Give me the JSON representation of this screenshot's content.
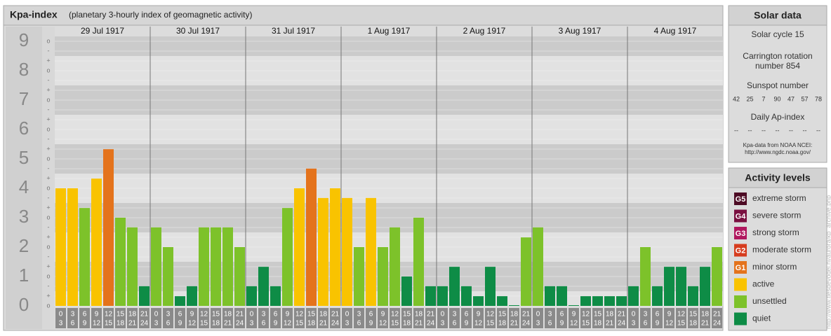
{
  "chart_data": {
    "type": "bar",
    "title": "Kpa-index",
    "subtitle": "(planetary 3-hourly index of geomagnetic activity)",
    "ylim": [
      0,
      9
    ],
    "yticks": [
      0,
      1,
      2,
      3,
      4,
      5,
      6,
      7,
      8,
      9
    ],
    "sublabels": [
      "o",
      "+",
      "-"
    ],
    "intervals": [
      [
        0,
        3
      ],
      [
        3,
        6
      ],
      [
        6,
        9
      ],
      [
        9,
        12
      ],
      [
        12,
        15
      ],
      [
        15,
        18
      ],
      [
        18,
        21
      ],
      [
        21,
        24
      ]
    ],
    "days": [
      {
        "label": "29 Jul 1917",
        "values": [
          4,
          4,
          3.33,
          4.33,
          5.33,
          3,
          2.67,
          0.67
        ],
        "colors": [
          "#f9c300",
          "#f9c300",
          "#7dc22a",
          "#f9c300",
          "#e4731c",
          "#7dc22a",
          "#7dc22a",
          "#0e8c46"
        ]
      },
      {
        "label": "30 Jul 1917",
        "values": [
          2.67,
          2,
          0.33,
          0.67,
          2.67,
          2.67,
          2.67,
          2
        ],
        "colors": [
          "#7dc22a",
          "#7dc22a",
          "#0e8c46",
          "#0e8c46",
          "#7dc22a",
          "#7dc22a",
          "#7dc22a",
          "#7dc22a"
        ]
      },
      {
        "label": "31 Jul 1917",
        "values": [
          0.67,
          1.33,
          0.67,
          3.33,
          4,
          4.67,
          3.67,
          4
        ],
        "colors": [
          "#0e8c46",
          "#0e8c46",
          "#0e8c46",
          "#7dc22a",
          "#f9c300",
          "#e4731c",
          "#f9c300",
          "#f9c300"
        ]
      },
      {
        "label": "1 Aug 1917",
        "values": [
          3.67,
          2,
          3.67,
          2,
          2.67,
          1,
          3,
          0.67
        ],
        "colors": [
          "#f9c300",
          "#7dc22a",
          "#f9c300",
          "#7dc22a",
          "#7dc22a",
          "#0e8c46",
          "#7dc22a",
          "#0e8c46"
        ]
      },
      {
        "label": "2 Aug 1917",
        "values": [
          0.67,
          1.33,
          0.67,
          0.33,
          1.33,
          0.33,
          0,
          2.33
        ],
        "colors": [
          "#0e8c46",
          "#0e8c46",
          "#0e8c46",
          "#0e8c46",
          "#0e8c46",
          "#0e8c46",
          "#0e8c46",
          "#7dc22a"
        ]
      },
      {
        "label": "3 Aug 1917",
        "values": [
          2.67,
          0.67,
          0.67,
          0,
          0.33,
          0.33,
          0.33,
          0.33
        ],
        "colors": [
          "#7dc22a",
          "#0e8c46",
          "#0e8c46",
          "#0e8c46",
          "#0e8c46",
          "#0e8c46",
          "#0e8c46",
          "#0e8c46"
        ]
      },
      {
        "label": "4 Aug 1917",
        "values": [
          0.67,
          2,
          0.67,
          1.33,
          1.33,
          0.67,
          1.33,
          2
        ],
        "colors": [
          "#0e8c46",
          "#7dc22a",
          "#0e8c46",
          "#0e8c46",
          "#0e8c46",
          "#0e8c46",
          "#0e8c46",
          "#7dc22a"
        ]
      }
    ]
  },
  "solar_data": {
    "title": "Solar data",
    "cycle": "Solar cycle 15",
    "carrington": [
      "Carrington rotation",
      "number 854"
    ],
    "sunspot_title": "Sunspot number",
    "sunspots": [
      42,
      25,
      7,
      90,
      47,
      57,
      78
    ],
    "ap_title": "Daily Ap-index",
    "ap": [
      "--",
      "--",
      "--",
      "--",
      "--",
      "--",
      "--"
    ],
    "source": [
      "Kpa-data from NOAA NCEI:",
      "http://www.ngdc.noaa.gov/"
    ]
  },
  "activity_levels": {
    "title": "Activity levels",
    "items": [
      {
        "badge": "G5",
        "label": "extreme storm",
        "color": "#4d0b24"
      },
      {
        "badge": "G4",
        "label": "severe storm",
        "color": "#7a1040"
      },
      {
        "badge": "G3",
        "label": "strong storm",
        "color": "#b0175e"
      },
      {
        "badge": "G2",
        "label": "moderate storm",
        "color": "#d63c1e"
      },
      {
        "badge": "G1",
        "label": "minor storm",
        "color": "#e4731c"
      },
      {
        "label": "active",
        "color": "#f9c300"
      },
      {
        "label": "unsettled",
        "color": "#7dc22a"
      },
      {
        "label": "quiet",
        "color": "#0e8c46"
      }
    ]
  },
  "credit": "http://www.tiesdevogel.nl/aurora/kp_archive.php"
}
